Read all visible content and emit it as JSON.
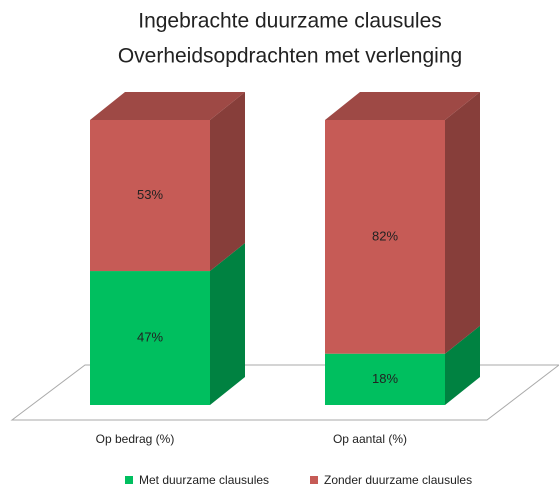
{
  "chart_data": {
    "type": "bar3d_stacked_percent",
    "title": [
      "Ingebrachte duurzame clausules",
      "Overheidsopdrachten met verlenging"
    ],
    "categories": [
      "Op bedrag (%)",
      "Op aantal (%)"
    ],
    "series": [
      {
        "name": "Met duurzame clausules",
        "color": "#00bf5f",
        "values": [
          47,
          18
        ],
        "value_labels": [
          "47%",
          "18%"
        ]
      },
      {
        "name": "Zonder duurzame clausules",
        "color": "#c65b56",
        "values": [
          53,
          82
        ],
        "value_labels": [
          "53%",
          "82%"
        ]
      }
    ]
  }
}
